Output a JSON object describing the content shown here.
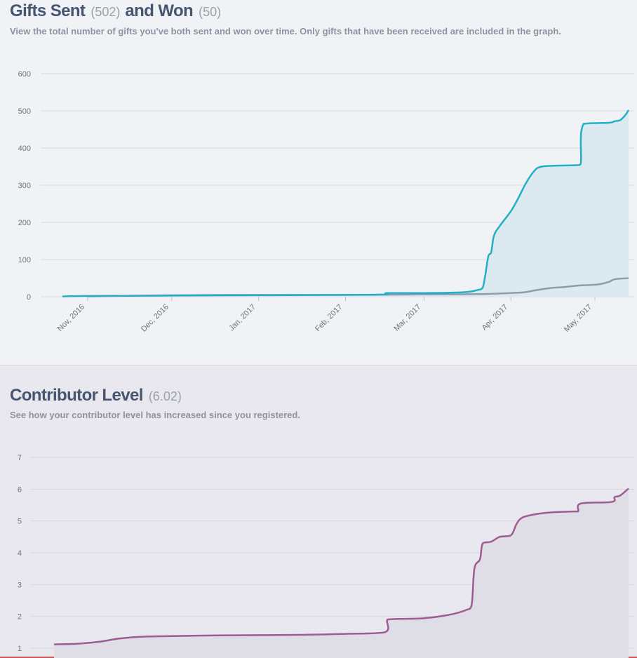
{
  "gifts": {
    "title_sent": "Gifts Sent",
    "sent_count": "(502)",
    "title_won": "and Won",
    "won_count": "(50)",
    "subtitle": "View the total number of gifts you've both sent and won over time. Only gifts that have been received are included in the graph."
  },
  "contributor": {
    "title": "Contributor Level",
    "level": "(6.02)",
    "subtitle": "See how your contributor level has increased since you registered."
  },
  "colors": {
    "sent": "#22b0c8",
    "won": "#8f9cae",
    "sent_fill": "#dce9f1",
    "level": "#9e5c93",
    "level_fill": "#dfdde5"
  },
  "chart_data": [
    {
      "type": "area",
      "x_type": "date",
      "ylim": [
        0,
        600
      ],
      "yticks": [
        "600",
        "500",
        "400",
        "300",
        "200",
        "100",
        "0"
      ],
      "xticks": [
        {
          "date": "2016-11-01",
          "label": "Nov, 2016"
        },
        {
          "date": "2016-12-01",
          "label": "Dec, 2016"
        },
        {
          "date": "2017-01-01",
          "label": "Jan, 2017"
        },
        {
          "date": "2017-02-01",
          "label": "Feb, 2017"
        },
        {
          "date": "2017-03-01",
          "label": "Mar, 2017"
        },
        {
          "date": "2017-04-01",
          "label": "Apr, 2017"
        },
        {
          "date": "2017-05-01",
          "label": "May, 2017"
        }
      ],
      "grid": true,
      "series": [
        {
          "key": "sent",
          "points": [
            [
              "2016-10-23",
              1
            ],
            [
              "2016-11-01",
              2
            ],
            [
              "2016-12-01",
              3
            ],
            [
              "2017-01-01",
              4
            ],
            [
              "2017-02-01",
              5
            ],
            [
              "2017-02-15",
              6
            ],
            [
              "2017-02-16",
              10
            ],
            [
              "2017-03-01",
              10
            ],
            [
              "2017-03-15",
              12
            ],
            [
              "2017-03-20",
              18
            ],
            [
              "2017-03-22",
              25
            ],
            [
              "2017-03-24",
              110
            ],
            [
              "2017-03-25",
              120
            ],
            [
              "2017-03-26",
              165
            ],
            [
              "2017-03-28",
              190
            ],
            [
              "2017-04-01",
              230
            ],
            [
              "2017-04-04",
              270
            ],
            [
              "2017-04-06",
              300
            ],
            [
              "2017-04-09",
              335
            ],
            [
              "2017-04-12",
              350
            ],
            [
              "2017-04-20",
              353
            ],
            [
              "2017-04-25",
              354
            ],
            [
              "2017-04-26",
              360
            ],
            [
              "2017-04-27",
              465
            ],
            [
              "2017-05-06",
              468
            ],
            [
              "2017-05-08",
              472
            ],
            [
              "2017-05-10",
              475
            ],
            [
              "2017-05-12",
              490
            ],
            [
              "2017-05-13",
              502
            ]
          ]
        },
        {
          "key": "won",
          "points": [
            [
              "2016-11-01",
              1
            ],
            [
              "2016-12-01",
              4
            ],
            [
              "2017-01-01",
              5
            ],
            [
              "2017-02-01",
              5
            ],
            [
              "2017-03-01",
              6
            ],
            [
              "2017-03-20",
              7
            ],
            [
              "2017-04-01",
              10
            ],
            [
              "2017-04-06",
              12
            ],
            [
              "2017-04-08",
              15
            ],
            [
              "2017-04-12",
              20
            ],
            [
              "2017-04-16",
              24
            ],
            [
              "2017-04-20",
              26
            ],
            [
              "2017-04-25",
              30
            ],
            [
              "2017-05-02",
              33
            ],
            [
              "2017-05-06",
              40
            ],
            [
              "2017-05-08",
              47
            ],
            [
              "2017-05-13",
              50
            ]
          ]
        }
      ]
    },
    {
      "type": "area",
      "x_type": "date",
      "ylim": [
        1,
        7
      ],
      "yticks": [
        "7",
        "6",
        "5",
        "4",
        "3",
        "2",
        "1"
      ],
      "grid": true,
      "series": [
        {
          "key": "level",
          "points": [
            [
              "2016-10-20",
              1.12
            ],
            [
              "2016-10-28",
              1.14
            ],
            [
              "2016-11-05",
              1.2
            ],
            [
              "2016-11-12",
              1.3
            ],
            [
              "2016-11-20",
              1.36
            ],
            [
              "2016-12-01",
              1.38
            ],
            [
              "2016-12-15",
              1.4
            ],
            [
              "2017-01-01",
              1.41
            ],
            [
              "2017-01-15",
              1.42
            ],
            [
              "2017-02-01",
              1.45
            ],
            [
              "2017-02-15",
              1.5
            ],
            [
              "2017-02-16",
              1.9
            ],
            [
              "2017-02-20",
              1.92
            ],
            [
              "2017-03-01",
              1.94
            ],
            [
              "2017-03-10",
              2.05
            ],
            [
              "2017-03-16",
              2.2
            ],
            [
              "2017-03-18",
              2.35
            ],
            [
              "2017-03-19",
              3.5
            ],
            [
              "2017-03-21",
              3.8
            ],
            [
              "2017-03-22",
              4.3
            ],
            [
              "2017-03-25",
              4.35
            ],
            [
              "2017-03-28",
              4.5
            ],
            [
              "2017-04-01",
              4.55
            ],
            [
              "2017-04-03",
              4.9
            ],
            [
              "2017-04-05",
              5.1
            ],
            [
              "2017-04-09",
              5.2
            ],
            [
              "2017-04-13",
              5.25
            ],
            [
              "2017-04-17",
              5.28
            ],
            [
              "2017-04-23",
              5.3
            ],
            [
              "2017-04-25",
              5.3
            ],
            [
              "2017-04-26",
              5.55
            ],
            [
              "2017-05-07",
              5.6
            ],
            [
              "2017-05-08",
              5.75
            ],
            [
              "2017-05-10",
              5.8
            ],
            [
              "2017-05-13",
              6.02
            ]
          ]
        }
      ]
    }
  ]
}
